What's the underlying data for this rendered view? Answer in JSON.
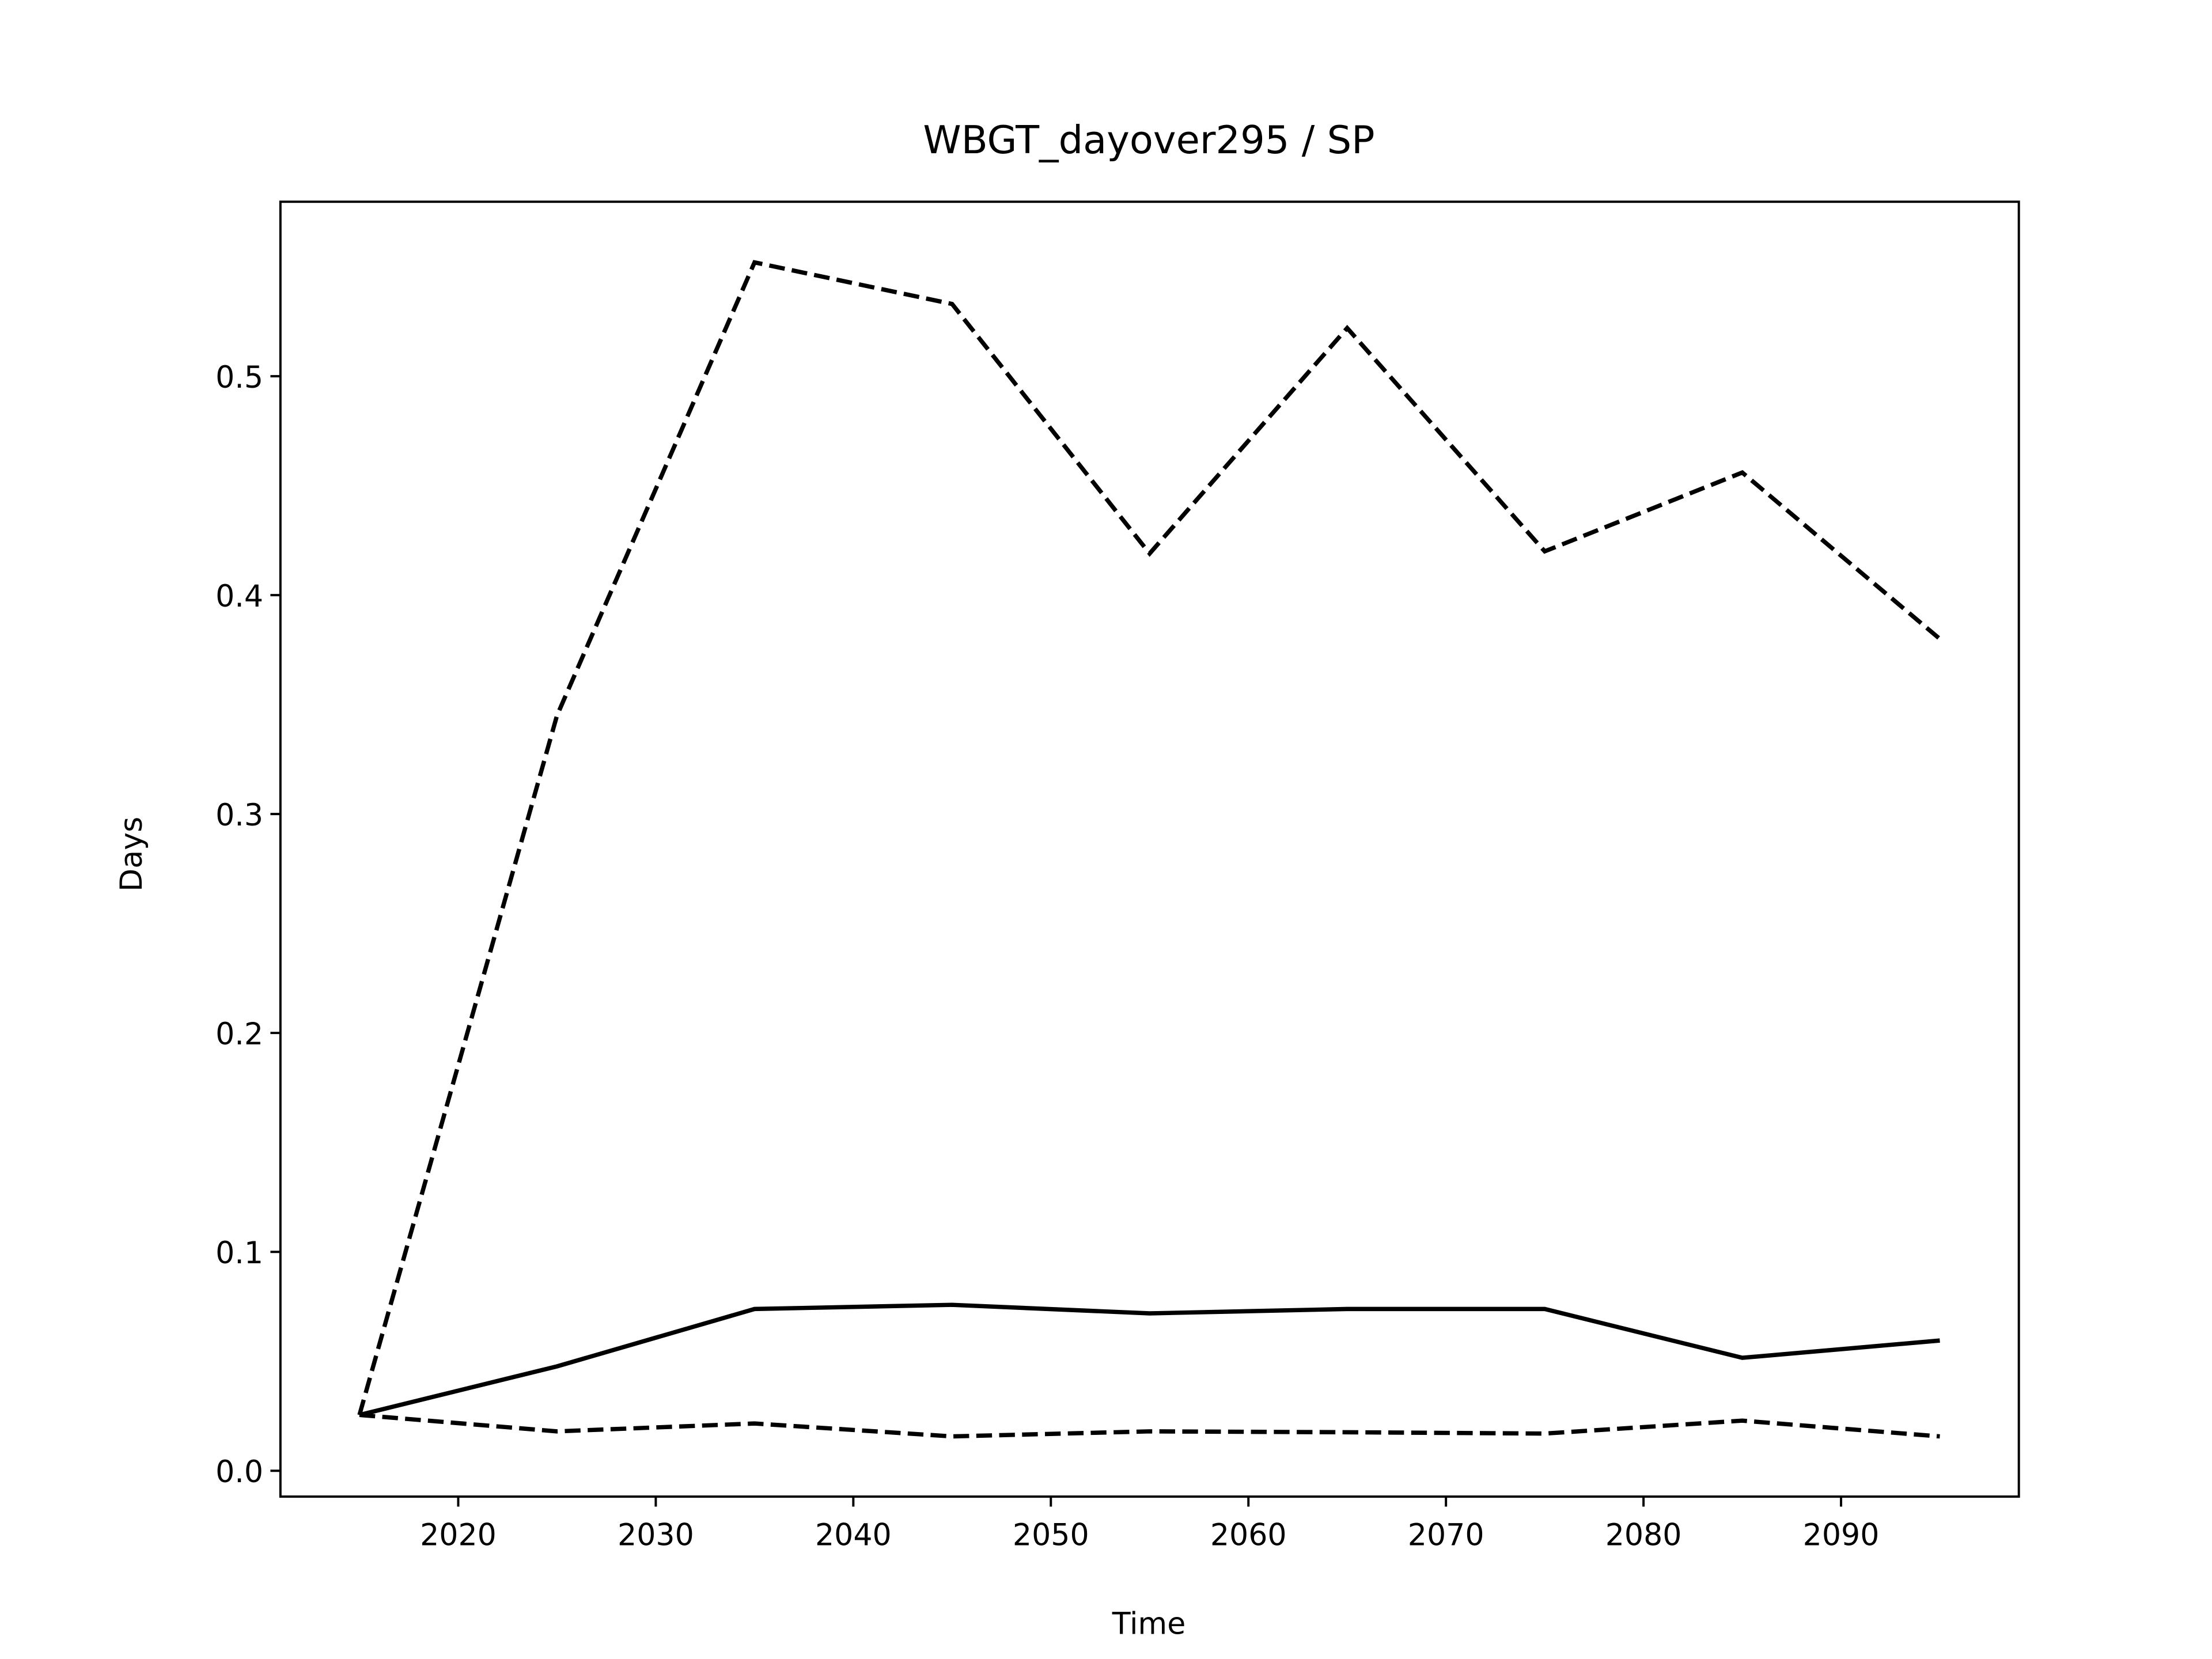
{
  "chart_data": {
    "type": "line",
    "title": "WBGT_dayover295 / SP",
    "x_label": "Time",
    "y_label": "Days",
    "x": [
      2015,
      2025,
      2035,
      2045,
      2055,
      2065,
      2075,
      2085,
      2095
    ],
    "series": [
      {
        "color": "#000000",
        "linestyle": "solid",
        "values": [
          0.0255,
          0.0477,
          0.0739,
          0.0758,
          0.0719,
          0.0739,
          0.0739,
          0.0516,
          0.0595
        ]
      },
      {
        "color": "#000000",
        "linestyle": "dashed",
        "values": [
          0.0255,
          0.345,
          0.552,
          0.533,
          0.419,
          0.522,
          0.42,
          0.456,
          0.38
        ]
      },
      {
        "color": "#000000",
        "linestyle": "dashed",
        "values": [
          0.0255,
          0.018,
          0.0216,
          0.0157,
          0.018,
          0.0176,
          0.017,
          0.0229,
          0.0157
        ]
      }
    ],
    "xlim": [
      2011,
      2099
    ],
    "ylim": [
      -0.0118,
      0.5797
    ],
    "xticks": [
      2020,
      2030,
      2040,
      2050,
      2060,
      2070,
      2080,
      2090
    ],
    "yticks": [
      {
        "value": 0,
        "label": "0.0"
      },
      0.1,
      0.2,
      0.3,
      0.4,
      0.5
    ]
  }
}
